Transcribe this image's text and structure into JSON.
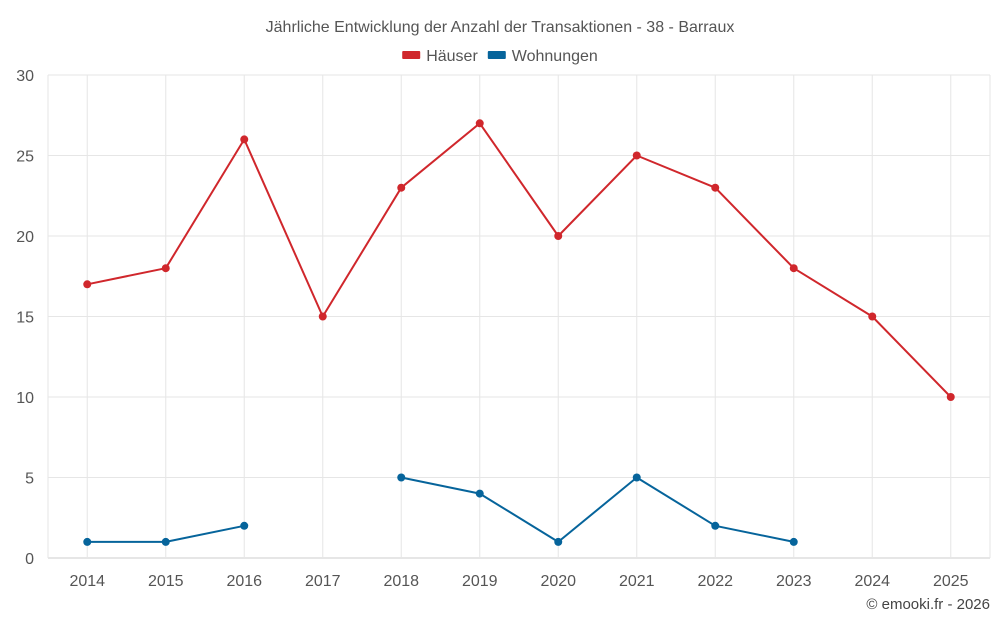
{
  "chart_data": {
    "type": "line",
    "title": "Jährliche Entwicklung der Anzahl der Transaktionen - 38 - Barraux",
    "x": [
      "2014",
      "2015",
      "2016",
      "2017",
      "2018",
      "2019",
      "2020",
      "2021",
      "2022",
      "2023",
      "2024",
      "2025"
    ],
    "ylim": [
      0,
      30
    ],
    "yticks": [
      0,
      5,
      10,
      15,
      20,
      25,
      30
    ],
    "grid": true,
    "legend_position": "top-center",
    "series": [
      {
        "name": "Häuser",
        "color": "#d0272c",
        "values": [
          17,
          18,
          26,
          15,
          23,
          27,
          20,
          25,
          23,
          18,
          15,
          10
        ]
      },
      {
        "name": "Wohnungen",
        "color": "#06649b",
        "values": [
          1,
          1,
          2,
          null,
          5,
          4,
          1,
          5,
          2,
          1,
          null,
          null
        ]
      }
    ]
  },
  "credit": "© emooki.fr - 2026"
}
